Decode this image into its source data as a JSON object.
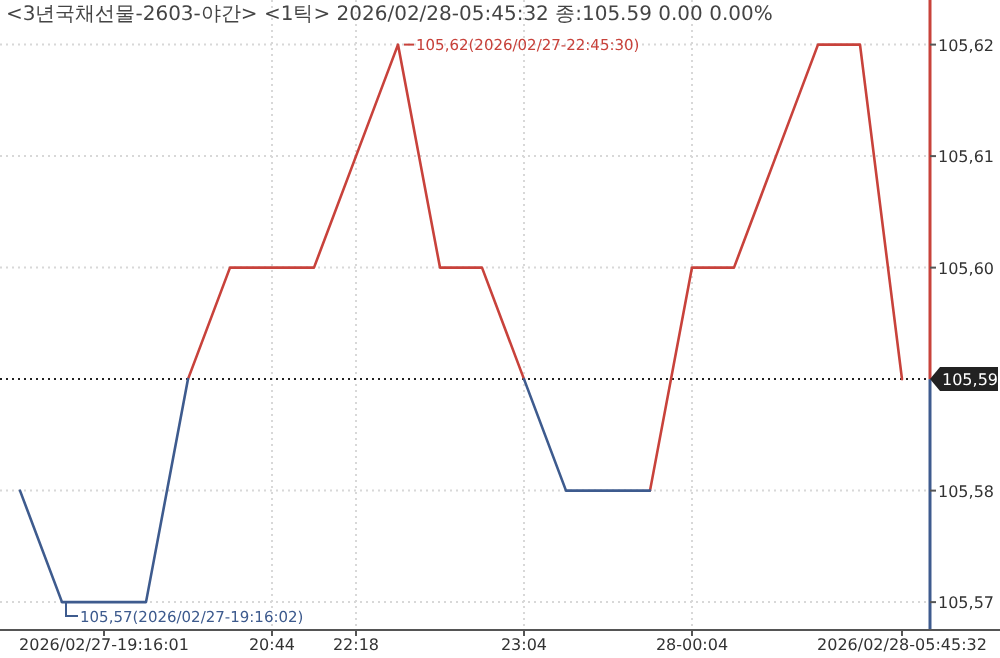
{
  "chart_data": {
    "type": "line",
    "title": "<3년국채선물-2603-야간> <1틱> 2026/02/28-05:45:32 종:105.59 0.00 0.00%",
    "categories": [
      null,
      null,
      "2026/02/27-19:16:01",
      null,
      null,
      null,
      "20:44",
      null,
      "22:18",
      null,
      null,
      null,
      "23:04",
      null,
      null,
      null,
      "28-00:04",
      null,
      null,
      null,
      null,
      "2026/02/28-05:45:32"
    ],
    "series": [
      {
        "color": "#c8423b",
        "values": [
          null,
          null,
          null,
          null,
          105.59,
          105.6,
          105.6,
          105.6,
          105.61,
          105.62,
          105.6,
          105.6,
          105.59,
          null,
          null,
          105.58,
          105.6,
          105.6,
          105.61,
          105.62,
          105.62,
          105.59
        ]
      },
      {
        "color": "#3e5b8e",
        "values": [
          105.58,
          105.57,
          105.57,
          105.57,
          105.59,
          null,
          null,
          null,
          null,
          null,
          null,
          null,
          105.59,
          105.58,
          105.58,
          105.58,
          null,
          null,
          null,
          null,
          null,
          null
        ]
      }
    ],
    "ylim": [
      105.5675,
      105.624
    ],
    "yticks": [
      {
        "value": 105.57,
        "label": "105,57"
      },
      {
        "value": 105.58,
        "label": "105,58"
      },
      {
        "value": 105.6,
        "label": "105,60"
      },
      {
        "value": 105.61,
        "label": "105,61"
      },
      {
        "value": 105.62,
        "label": "105,62"
      }
    ],
    "grid": true,
    "ref_lines": [
      {
        "axis": "y",
        "value": 105.59,
        "label": "105,59",
        "color": "#222222",
        "line_style": "dotted"
      }
    ],
    "annotations": [
      "105,57(2026/02/27-19:16:02)",
      "105,62(2026/02/27-22:45:30)"
    ]
  }
}
